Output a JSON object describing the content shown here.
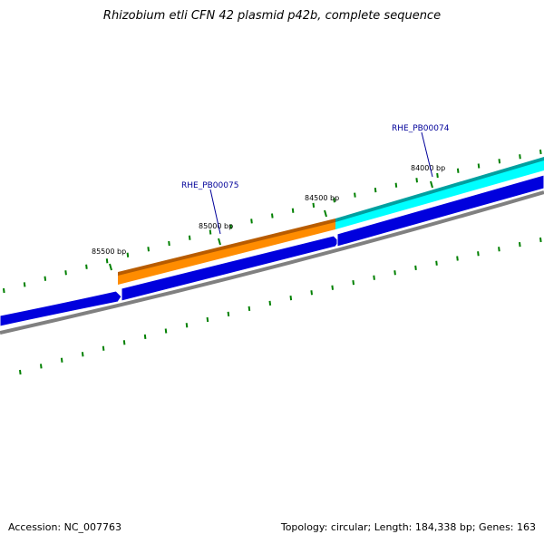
{
  "title": "Rhizobium etli CFN 42 plasmid p42b, complete sequence",
  "footer": {
    "accession": "Accession: NC_007763",
    "summary": "Topology: circular; Length: 184,338 bp; Genes: 163"
  },
  "ticks": [
    {
      "label": "85500 bp"
    },
    {
      "label": "85000 bp"
    },
    {
      "label": "84500 bp"
    },
    {
      "label": "84000 bp"
    }
  ],
  "genes": [
    {
      "name": "RHE_PB00075",
      "color": "#ff8c00"
    },
    {
      "name": "RHE_PB00074",
      "color": "#00ffff"
    }
  ],
  "colors": {
    "cds": "#0000dd",
    "backbone": "#808080",
    "tick": "#008000",
    "label": "#000099"
  }
}
